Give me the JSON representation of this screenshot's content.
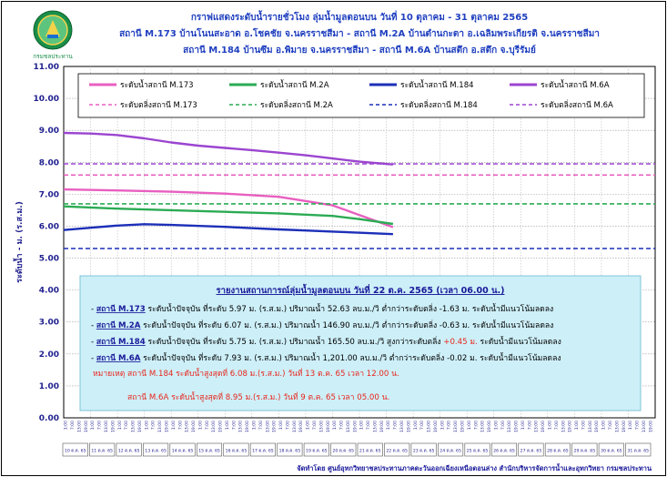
{
  "titles": [
    "กราฟแสดงระดับน้ำรายชั่วโมง ลุ่มน้ำมูลตอนบน วันที่ 10 ตุลาคม - 31 ตุลาคม 2565",
    "สถานี M.173 บ้านโนนสะอาด อ.โชคชัย จ.นครราชสีมา - สถานี M.2A บ้านตำนกะตา อ.เฉลิมพระเกียรติ จ.นครราชสีมา",
    "สถานี M.184 บ้านซึม อ.พิมาย จ.นครราชสีมา - สถานี M.6A บ้านสตึก อ.สตึก จ.บุรีรัมย์"
  ],
  "logo_text": "กรมชลประทาน",
  "footer": "จัดทำโดย ศูนย์อุทกวิทยาชลประทานภาคตะวันออกเฉียงเหนือตอนล่าง สำนักบริหารจัดการน้ำและอุทกวิทยา กรมชลประทาน",
  "report": {
    "heading": "รายงานสถานการณ์ลุ่มน้ำมูลตอนบน วันที่ 22 ต.ค. 2565 (เวลา 06.00 น.)",
    "rows": [
      {
        "station": "สถานี M.173",
        "text": "ระดับน้ำปัจจุบัน ที่ระดับ 5.97 ม. (ร.ส.ม.) ปริมาณน้ำ 52.63 ลบ.ม./วิ ต่ำกว่าระดับตลิ่ง",
        "delta": "-1.63 ม.",
        "tail": "ระดับน้ำมีแนวโน้มลดลง",
        "delta_red": false
      },
      {
        "station": "สถานี M.2A",
        "text": "ระดับน้ำปัจจุบัน ที่ระดับ 6.07 ม. (ร.ส.ม.) ปริมาณน้ำ 146.90 ลบ.ม./วิ ต่ำกว่าระดับตลิ่ง",
        "delta": "-0.63 ม.",
        "tail": "ระดับน้ำมีแนวโน้มลดลง",
        "delta_red": false
      },
      {
        "station": "สถานี M.184",
        "text": "ระดับน้ำปัจจุบัน ที่ระดับ 5.75 ม. (ร.ส.ม.) ปริมาณน้ำ 165.50 ลบ.ม./วิ สูงกว่าระดับตลิ่ง",
        "delta": "+0.45 ม.",
        "tail": "ระดับน้ำมีแนวโน้มลดลง",
        "delta_red": true
      },
      {
        "station": "สถานี M.6A",
        "text": "ระดับน้ำปัจจุบัน ที่ระดับ 7.93 ม. (ร.ส.ม.) ปริมาณน้ำ 1,201.00 ลบ.ม./วิ ต่ำกว่าระดับตลิ่ง",
        "delta": "-0.02 ม.",
        "tail": "ระดับน้ำมีแนวโน้มลดลง",
        "delta_red": false
      }
    ],
    "note_label": "หมายเหตุ",
    "notes": [
      "สถานี M.184 ระดับน้ำสูงสุดที่ 6.08 ม.(ร.ส.ม.) วันที่ 13 ต.ค. 65 เวลา 12.00 น.",
      "สถานี M.6A ระดับน้ำสูงสุดที่ 8.95 ม.(ร.ส.ม.) วันที่ 9 ต.ค. 65 เวลา 05.00 น."
    ]
  },
  "chart_data": {
    "type": "line",
    "ylabel": "ระดับน้ำ - ม. (ร.ส.ม.)",
    "ylim": [
      0,
      11
    ],
    "yticks": [
      "0.00",
      "1.00",
      "2.00",
      "3.00",
      "4.00",
      "5.00",
      "6.00",
      "7.00",
      "8.00",
      "9.00",
      "10.00",
      "11.00"
    ],
    "grid": true,
    "legend_position": "top",
    "hour_ticks": [
      "1:00",
      "7:00",
      "13:00",
      "19:00"
    ],
    "days": [
      "10 ต.ค. 65",
      "11 ต.ค. 65",
      "12 ต.ค. 65",
      "13 ต.ค. 65",
      "14 ต.ค. 65",
      "15 ต.ค. 65",
      "16 ต.ค. 65",
      "17 ต.ค. 65",
      "18 ต.ค. 65",
      "19 ต.ค. 65",
      "20 ต.ค. 65",
      "21 ต.ค. 65",
      "22 ต.ค. 65",
      "23 ต.ค. 65",
      "24 ต.ค. 65",
      "25 ต.ค. 65",
      "26 ต.ค. 65",
      "27 ต.ค. 65",
      "28 ต.ค. 65",
      "29 ต.ค. 65",
      "30 ต.ค. 65",
      "31 ต.ค. 65"
    ],
    "series": [
      {
        "name": "ระดับน้ำสถานี M.173",
        "color": "#e85fc0",
        "dash": false,
        "x_day": [
          0,
          2,
          4,
          6,
          8,
          10,
          11,
          12.25
        ],
        "values": [
          7.15,
          7.12,
          7.08,
          7.02,
          6.92,
          6.65,
          6.35,
          5.97
        ]
      },
      {
        "name": "ระดับน้ำสถานี M.2A",
        "color": "#2bab54",
        "dash": false,
        "x_day": [
          0,
          2,
          4,
          6,
          8,
          10,
          11,
          12.25
        ],
        "values": [
          6.62,
          6.55,
          6.5,
          6.45,
          6.4,
          6.32,
          6.22,
          6.07
        ]
      },
      {
        "name": "ระดับน้ำสถานี M.184",
        "color": "#1c2fb8",
        "dash": false,
        "x_day": [
          0,
          1,
          2,
          3,
          4,
          6,
          8,
          10,
          12.25
        ],
        "values": [
          5.88,
          5.95,
          6.02,
          6.06,
          6.04,
          5.98,
          5.9,
          5.83,
          5.75
        ]
      },
      {
        "name": "ระดับน้ำสถานี M.6A",
        "color": "#9b45d0",
        "dash": false,
        "x_day": [
          0,
          1,
          2,
          3,
          4,
          5,
          6,
          7,
          8,
          9,
          10,
          11,
          12.25
        ],
        "values": [
          8.92,
          8.9,
          8.85,
          8.75,
          8.62,
          8.52,
          8.45,
          8.38,
          8.3,
          8.22,
          8.12,
          8.02,
          7.93
        ]
      },
      {
        "name": "ระดับตลิ่งสถานี M.173",
        "color": "#e85fc0",
        "dash": true,
        "x_day": [
          0,
          22
        ],
        "values": [
          7.6,
          7.6
        ]
      },
      {
        "name": "ระดับตลิ่งสถานี M.2A",
        "color": "#2bab54",
        "dash": true,
        "x_day": [
          0,
          22
        ],
        "values": [
          6.7,
          6.7
        ]
      },
      {
        "name": "ระดับตลิ่งสถานี M.184",
        "color": "#1c2fb8",
        "dash": true,
        "x_day": [
          0,
          22
        ],
        "values": [
          5.3,
          5.3
        ]
      },
      {
        "name": "ระดับตลิ่งสถานี M.6A",
        "color": "#9b45d0",
        "dash": true,
        "x_day": [
          0,
          22
        ],
        "values": [
          7.95,
          7.95
        ]
      }
    ]
  }
}
